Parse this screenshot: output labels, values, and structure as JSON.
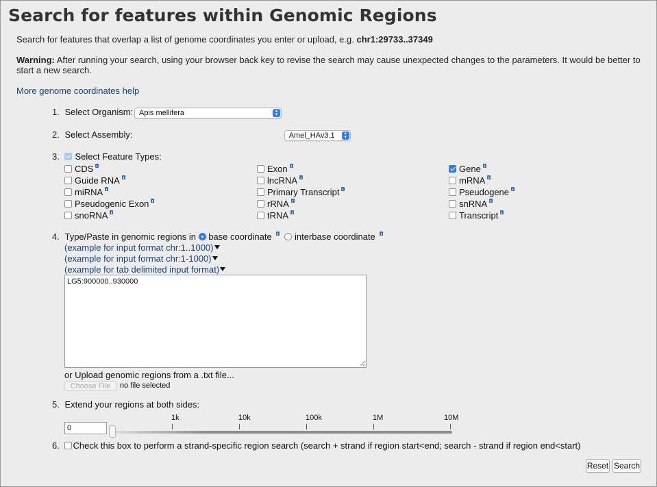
{
  "title": "Search for features within Genomic Regions",
  "intro_text": "Search for features that overlap a list of genome coordinates you enter or upload, e.g.",
  "intro_example": "chr1:29733..37349",
  "warning_label": "Warning:",
  "warning_text": "After running your search, using your browser back key to revise the search may cause unexpected changes to the parameters. It would be better to start a new search.",
  "help_link": "More genome coordinates help",
  "steps": {
    "s1": {
      "num": "1.",
      "label": "Select Organism:",
      "value": "Apis mellifera"
    },
    "s2": {
      "num": "2.",
      "label": "Select Assembly:",
      "value": "Amel_HAv3.1"
    },
    "s3": {
      "num": "3.",
      "label": "Select Feature Types:"
    },
    "s4": {
      "num": "4.",
      "label": "Type/Paste in genomic regions in",
      "radio1": "base coordinate",
      "radio2": "interbase coordinate",
      "example1": "(example for input format chr:1..1000)",
      "example2": "(example for input format chr:1-1000)",
      "example3": "(example for tab delimited input format)",
      "textarea_value": "LG5:900000..930000",
      "upload_label": "or Upload genomic regions from a .txt file...",
      "choose_file": "Choose File",
      "no_file": "no file selected"
    },
    "s5": {
      "num": "5.",
      "label": "Extend your regions at both sides:",
      "value": "0",
      "ticks": [
        "1k",
        "10k",
        "100k",
        "1M",
        "10M"
      ]
    },
    "s6": {
      "num": "6.",
      "label": "Check this box to perform a strand-specific region search (search + strand if region start<end; search - strand if region end<start)"
    }
  },
  "feature_types": {
    "col1": [
      {
        "label": "CDS",
        "checked": false
      },
      {
        "label": "Guide RNA",
        "checked": false
      },
      {
        "label": "miRNA",
        "checked": false
      },
      {
        "label": "Pseudogenic Exon",
        "checked": false
      },
      {
        "label": "snoRNA",
        "checked": false
      }
    ],
    "col2": [
      {
        "label": "Exon",
        "checked": false
      },
      {
        "label": "lncRNA",
        "checked": false
      },
      {
        "label": "Primary Transcript",
        "checked": false
      },
      {
        "label": "rRNA",
        "checked": false
      },
      {
        "label": "tRNA",
        "checked": false
      }
    ],
    "col3": [
      {
        "label": "Gene",
        "checked": true
      },
      {
        "label": "mRNA",
        "checked": false
      },
      {
        "label": "Pseudogene",
        "checked": false
      },
      {
        "label": "snRNA",
        "checked": false
      },
      {
        "label": "Transcript",
        "checked": false
      }
    ]
  },
  "buttons": {
    "reset": "Reset",
    "search": "Search"
  },
  "colors": {
    "link": "#15437f",
    "accent": "#2f7cf6",
    "background": "#ececec"
  }
}
